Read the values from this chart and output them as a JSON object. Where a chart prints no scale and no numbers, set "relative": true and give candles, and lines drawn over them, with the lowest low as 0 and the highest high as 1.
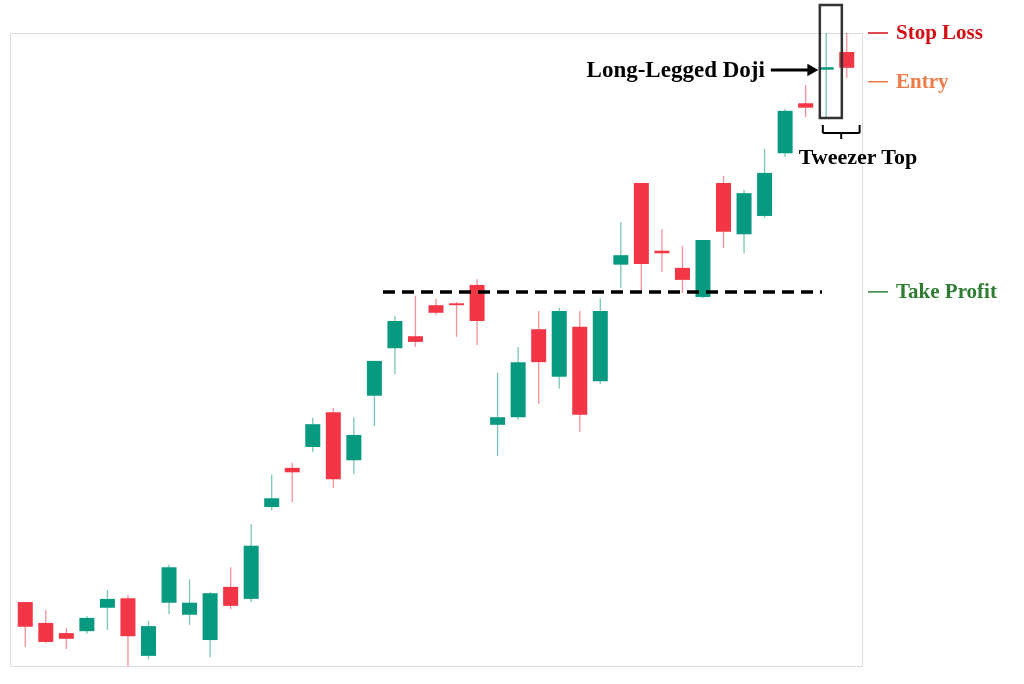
{
  "chart_data": {
    "type": "candlestick",
    "relative": true,
    "tick_labels": false,
    "categories": [
      null,
      null,
      null,
      null,
      null,
      null,
      null,
      null,
      null,
      null,
      null,
      null,
      null,
      null,
      null,
      null,
      null,
      null,
      null,
      null,
      null,
      null,
      null,
      null,
      null,
      null,
      null,
      null,
      null,
      null,
      null,
      null,
      null,
      null,
      null,
      null,
      null,
      null,
      null,
      null,
      null
    ],
    "ohlc": [
      [
        0.101,
        0.101,
        0.03,
        0.062
      ],
      [
        0.068,
        0.088,
        0.036,
        0.038
      ],
      [
        0.052,
        0.06,
        0.027,
        0.043
      ],
      [
        0.055,
        0.079,
        0.051,
        0.076
      ],
      [
        0.092,
        0.12,
        0.057,
        0.106
      ],
      [
        0.107,
        0.112,
        0.0,
        0.047
      ],
      [
        0.016,
        0.071,
        0.011,
        0.063
      ],
      [
        0.1,
        0.16,
        0.082,
        0.156
      ],
      [
        0.081,
        0.137,
        0.065,
        0.1
      ],
      [
        0.041,
        0.117,
        0.014,
        0.115
      ],
      [
        0.125,
        0.156,
        0.09,
        0.095
      ],
      [
        0.106,
        0.224,
        0.101,
        0.19
      ],
      [
        0.251,
        0.302,
        0.246,
        0.265
      ],
      [
        0.313,
        0.321,
        0.259,
        0.306
      ],
      [
        0.346,
        0.392,
        0.338,
        0.382
      ],
      [
        0.401,
        0.408,
        0.281,
        0.295
      ],
      [
        0.325,
        0.393,
        0.303,
        0.365
      ],
      [
        0.427,
        0.482,
        0.379,
        0.482
      ],
      [
        0.502,
        0.553,
        0.461,
        0.545
      ],
      [
        0.521,
        0.585,
        0.504,
        0.512
      ],
      [
        0.57,
        0.58,
        0.555,
        0.558
      ],
      [
        0.573,
        0.575,
        0.52,
        0.57
      ],
      [
        0.602,
        0.611,
        0.507,
        0.545
      ],
      [
        0.381,
        0.463,
        0.332,
        0.393
      ],
      [
        0.393,
        0.504,
        0.389,
        0.48
      ],
      [
        0.532,
        0.561,
        0.414,
        0.48
      ],
      [
        0.457,
        0.566,
        0.438,
        0.561
      ],
      [
        0.536,
        0.561,
        0.37,
        0.397
      ],
      [
        0.45,
        0.581,
        0.445,
        0.561
      ],
      [
        0.634,
        0.701,
        0.597,
        0.649
      ],
      [
        0.763,
        0.763,
        0.589,
        0.635
      ],
      [
        0.656,
        0.69,
        0.622,
        0.652
      ],
      [
        0.629,
        0.664,
        0.589,
        0.61
      ],
      [
        0.583,
        0.673,
        0.581,
        0.673
      ],
      [
        0.763,
        0.774,
        0.66,
        0.686
      ],
      [
        0.682,
        0.752,
        0.652,
        0.747
      ],
      [
        0.711,
        0.817,
        0.708,
        0.779
      ],
      [
        0.81,
        0.88,
        0.804,
        0.877
      ],
      [
        0.889,
        0.918,
        0.867,
        0.882
      ],
      [
        0.942,
        1.0,
        0.867,
        0.946
      ],
      [
        0.97,
        1.0,
        0.929,
        0.945
      ]
    ],
    "colors": [
      "#f23645",
      "#f23645",
      "#f23645",
      "#089981",
      "#089981",
      "#f23645",
      "#089981",
      "#089981",
      "#089981",
      "#089981",
      "#f23645",
      "#089981",
      "#089981",
      "#f23645",
      "#089981",
      "#f23645",
      "#089981",
      "#089981",
      "#089981",
      "#f23645",
      "#f23645",
      "#f23645",
      "#f23645",
      "#089981",
      "#089981",
      "#f23645",
      "#089981",
      "#f23645",
      "#089981",
      "#089981",
      "#f23645",
      "#f23645",
      "#f23645",
      "#089981",
      "#f23645",
      "#089981",
      "#089981",
      "#089981",
      "#f23645",
      "#089981",
      "#f23645"
    ],
    "ref_lines": [
      {
        "axis": "y",
        "value": 1.0,
        "label": "Stop Loss",
        "color": "#d40c12"
      },
      {
        "axis": "y",
        "value": 0.923,
        "label": "Entry",
        "color": "#f07a4a"
      },
      {
        "axis": "y",
        "value": 0.591,
        "color": "#000000",
        "line_style": "dashed"
      },
      {
        "axis": "y",
        "value": 0.591,
        "label": "Take Profit",
        "color": "#2e7d32"
      }
    ],
    "annotations": [
      "Long-Legged Doji",
      "Tweezer Top"
    ]
  }
}
